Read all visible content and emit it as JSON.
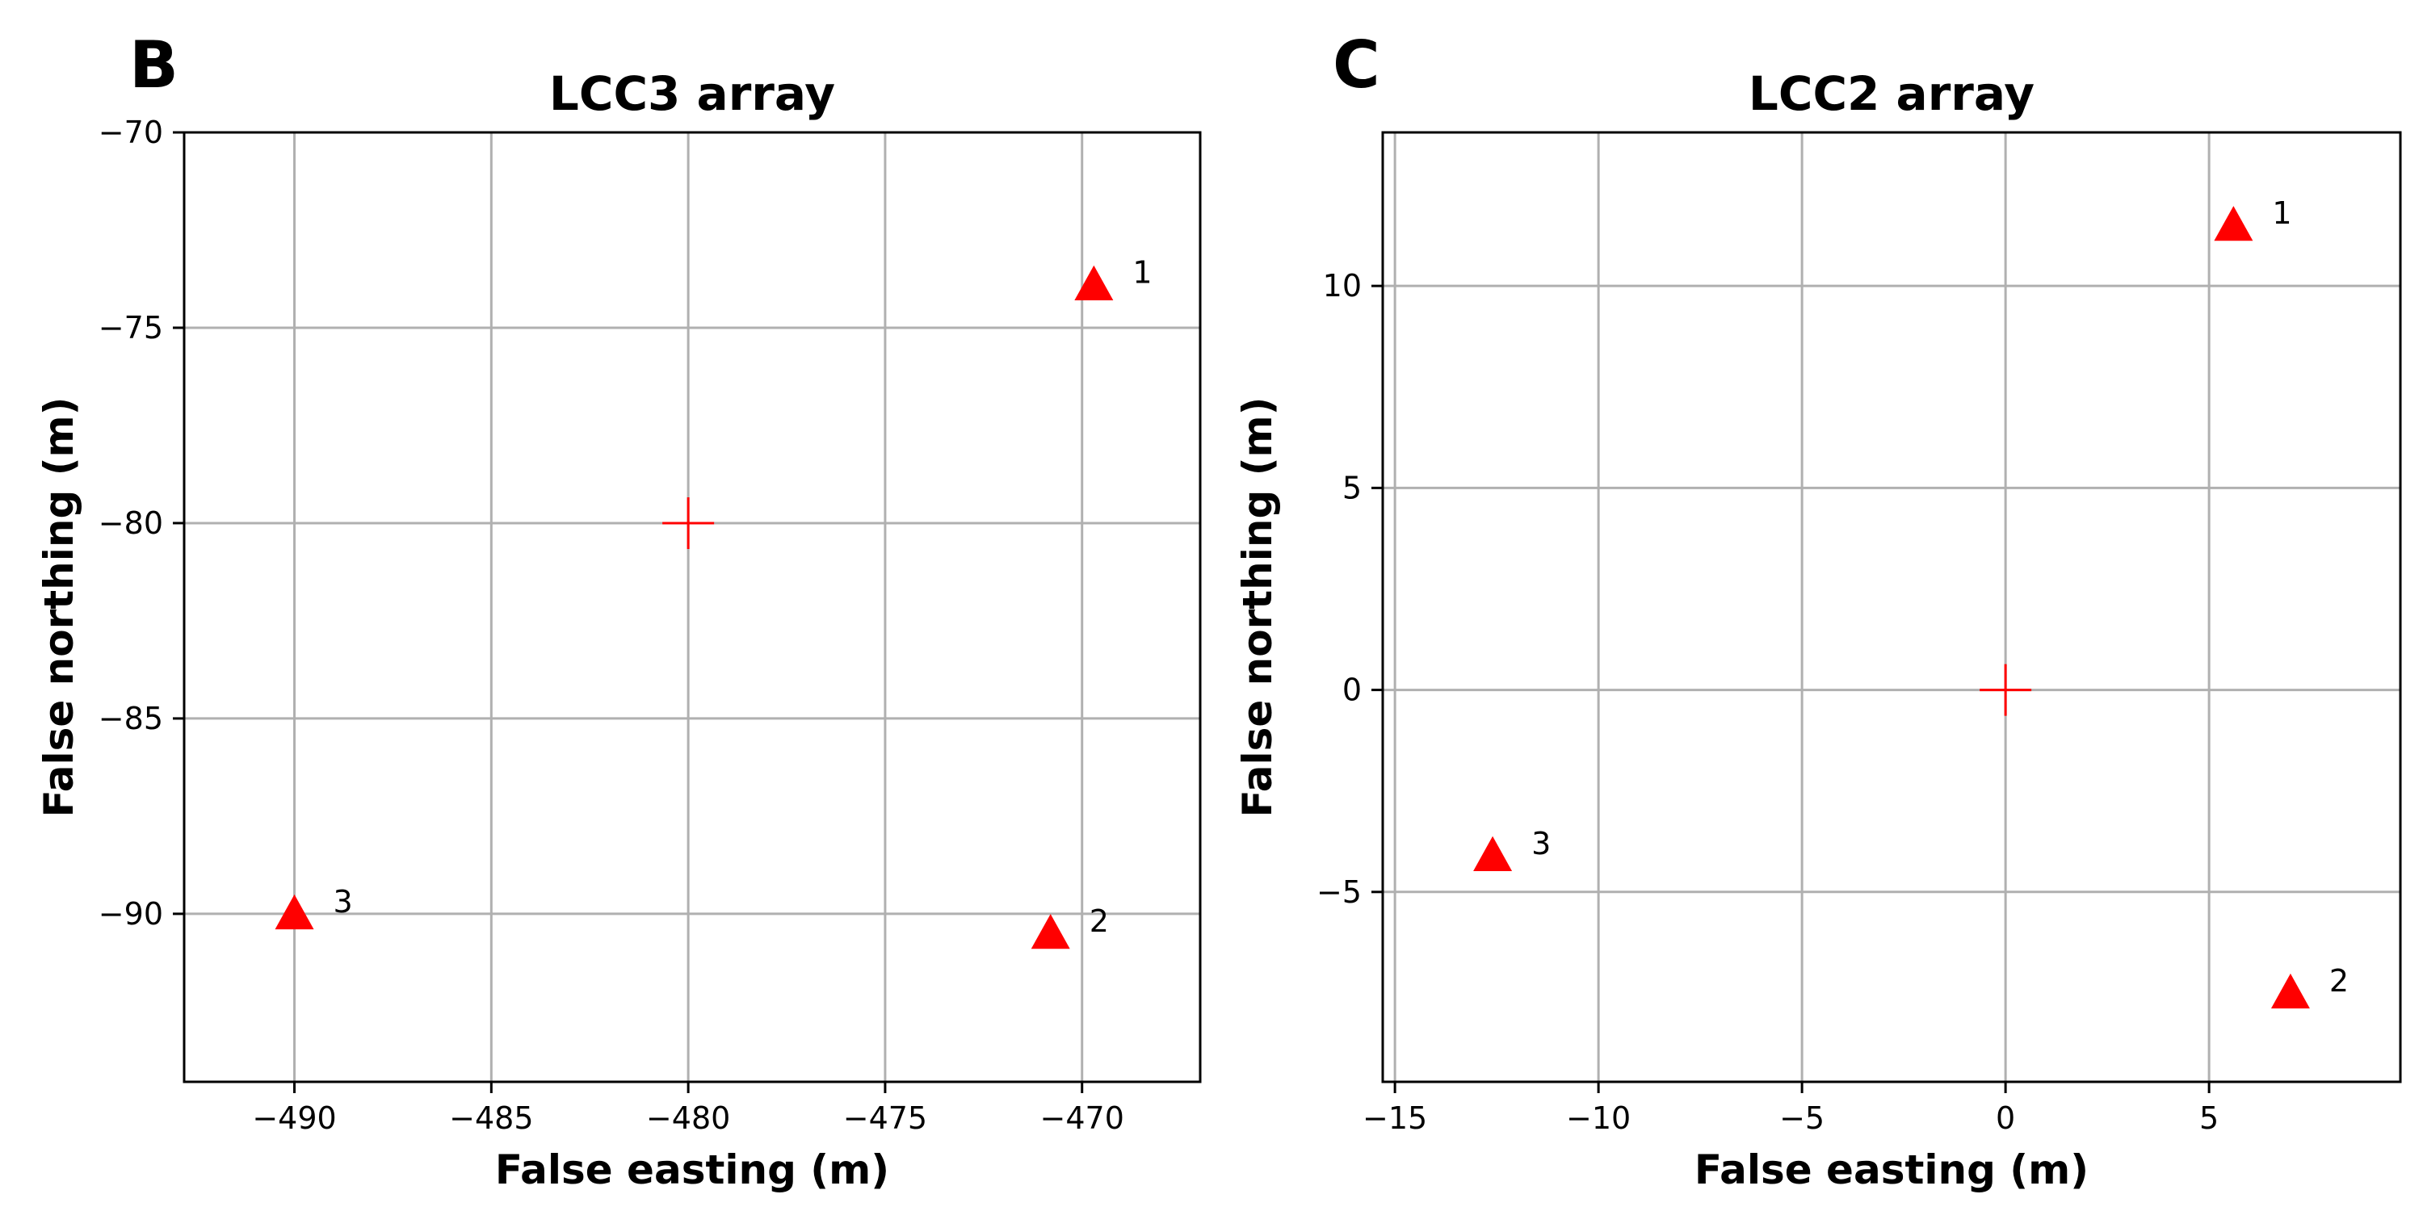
{
  "chart_data": [
    {
      "type": "scatter",
      "panel_label": "B",
      "title": "LCC3 array",
      "xlabel": "False easting (m)",
      "ylabel": "False northing (m)",
      "xlim": [
        -492.8,
        -467.0
      ],
      "ylim": [
        -94.3,
        -70.0
      ],
      "xticks": [
        -490,
        -485,
        -480,
        -475,
        -470
      ],
      "xtick_labels": [
        "−490",
        "−485",
        "−480",
        "−475",
        "−470"
      ],
      "yticks": [
        -70,
        -75,
        -80,
        -85,
        -90
      ],
      "ytick_labels": [
        "−70",
        "−75",
        "−80",
        "−85",
        "−90"
      ],
      "grid": true,
      "marker_color": "#ff0000",
      "center": {
        "x": -480.0,
        "y": -80.0,
        "marker": "plus"
      },
      "points": [
        {
          "label": "1",
          "x": -469.7,
          "y": -73.9
        },
        {
          "label": "2",
          "x": -470.8,
          "y": -90.5
        },
        {
          "label": "3",
          "x": -490.0,
          "y": -90.0
        }
      ]
    },
    {
      "type": "scatter",
      "panel_label": "C",
      "title": "LCC2 array",
      "xlabel": "False easting (m)",
      "ylabel": "False northing (m)",
      "xlim": [
        -15.3,
        9.7
      ],
      "ylim": [
        -9.7,
        13.8
      ],
      "xticks": [
        -15,
        -10,
        -5,
        0,
        5
      ],
      "xtick_labels": [
        "−15",
        "−10",
        "−5",
        "0",
        "5"
      ],
      "yticks": [
        10,
        5,
        0,
        -5
      ],
      "ytick_labels": [
        "10",
        "5",
        "0",
        "−5"
      ],
      "grid": true,
      "marker_color": "#ff0000",
      "center": {
        "x": 0.0,
        "y": 0.0,
        "marker": "plus"
      },
      "points": [
        {
          "label": "1",
          "x": 5.6,
          "y": 11.5
        },
        {
          "label": "2",
          "x": 7.0,
          "y": -7.5
        },
        {
          "label": "3",
          "x": -12.6,
          "y": -4.1
        }
      ]
    }
  ]
}
